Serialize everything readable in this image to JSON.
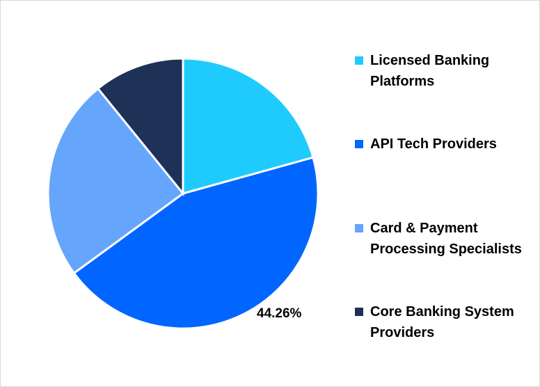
{
  "chart_data": {
    "type": "pie",
    "title": "",
    "categories": [
      "Licensed Banking Platforms",
      "API Tech Providers",
      "Card & Payment Processing Specialists",
      "Core Banking System Providers"
    ],
    "values": [
      20.7,
      44.26,
      24.2,
      10.84
    ],
    "colors": [
      "#1FCBFC",
      "#0066FF",
      "#66A5FC",
      "#1E3157"
    ],
    "data_labels": [
      {
        "category": "API Tech Providers",
        "text": "44.26%"
      }
    ],
    "legend_position": "right",
    "start_angle_deg": 0,
    "direction": "clockwise"
  },
  "legend": {
    "items": [
      {
        "label": "Licensed Banking Platforms",
        "color": "#1FCBFC"
      },
      {
        "label": "API Tech Providers",
        "color": "#0066FF"
      },
      {
        "label": "Card & Payment Processing Specialists",
        "color": "#66A5FC"
      },
      {
        "label": "Core Banking System Providers",
        "color": "#1E3157"
      }
    ]
  },
  "labels": {
    "api": "44.26%"
  }
}
